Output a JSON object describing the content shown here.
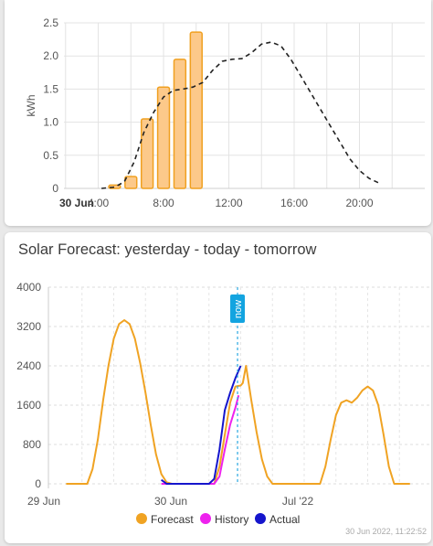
{
  "card1": {
    "chart_data": {
      "type": "bar",
      "ylabel": "kWh",
      "ylim": [
        0,
        2.5
      ],
      "y_ticks": [
        "0",
        "0.5",
        "1.0",
        "1.5",
        "2.0",
        "2.5"
      ],
      "x_tick_labels": [
        {
          "hour": 4,
          "label": "4:00"
        },
        {
          "hour": 8,
          "label": "8:00"
        },
        {
          "hour": 12,
          "label": "12:00"
        },
        {
          "hour": 16,
          "label": "16:00"
        },
        {
          "hour": 20,
          "label": "20:00"
        }
      ],
      "x_date_label": "30 Jun",
      "bars": [
        {
          "hour": 5,
          "value": 0.05
        },
        {
          "hour": 6,
          "value": 0.18
        },
        {
          "hour": 7,
          "value": 1.05
        },
        {
          "hour": 8,
          "value": 1.53
        },
        {
          "hour": 9,
          "value": 1.95
        },
        {
          "hour": 10,
          "value": 2.36
        }
      ],
      "forecast_line": [
        [
          4.2,
          0
        ],
        [
          5,
          0.02
        ],
        [
          5.6,
          0.1
        ],
        [
          6.2,
          0.4
        ],
        [
          6.8,
          0.85
        ],
        [
          7.4,
          1.15
        ],
        [
          8,
          1.38
        ],
        [
          8.6,
          1.48
        ],
        [
          9.2,
          1.5
        ],
        [
          9.8,
          1.53
        ],
        [
          10.4,
          1.6
        ],
        [
          11,
          1.78
        ],
        [
          11.6,
          1.92
        ],
        [
          12.2,
          1.95
        ],
        [
          12.8,
          1.96
        ],
        [
          13.4,
          2.05
        ],
        [
          14,
          2.18
        ],
        [
          14.6,
          2.21
        ],
        [
          15.2,
          2.15
        ],
        [
          15.8,
          1.95
        ],
        [
          16.4,
          1.7
        ],
        [
          17,
          1.45
        ],
        [
          17.6,
          1.2
        ],
        [
          18.2,
          0.95
        ],
        [
          18.8,
          0.7
        ],
        [
          19.4,
          0.45
        ],
        [
          20,
          0.27
        ],
        [
          20.6,
          0.15
        ],
        [
          21.2,
          0.08
        ]
      ],
      "colors": {
        "bar_fill": "#fcc98a",
        "bar_stroke": "#f0a020",
        "line": "#222222"
      }
    }
  },
  "card2": {
    "title": "Solar Forecast: yesterday - today - tomorrow",
    "now_label": "now",
    "timestamp": "30 Jun 2022, 11:22:52",
    "chart_data": {
      "type": "line",
      "ylim": [
        0,
        4000
      ],
      "y_ticks": [
        "0",
        "800",
        "1600",
        "2400",
        "3200",
        "4000"
      ],
      "x_tick_labels": [
        {
          "hour": 0,
          "label": "29 Jun"
        },
        {
          "hour": 24,
          "label": "30 Jun"
        },
        {
          "hour": 48,
          "label": "Jul '22"
        }
      ],
      "now_hour": 35.4,
      "series": [
        {
          "name": "Forecast",
          "color": "#f0a323",
          "points": [
            [
              3,
              0
            ],
            [
              7,
              0
            ],
            [
              8,
              300
            ],
            [
              9,
              900
            ],
            [
              10,
              1700
            ],
            [
              11,
              2400
            ],
            [
              12,
              2950
            ],
            [
              13,
              3250
            ],
            [
              14,
              3330
            ],
            [
              15,
              3250
            ],
            [
              16,
              2950
            ],
            [
              17,
              2450
            ],
            [
              18,
              1850
            ],
            [
              19,
              1200
            ],
            [
              20,
              600
            ],
            [
              21,
              200
            ],
            [
              22,
              30
            ],
            [
              23,
              0
            ],
            [
              31,
              0
            ],
            [
              32,
              350
            ],
            [
              33,
              1000
            ],
            [
              34,
              1650
            ],
            [
              35,
              1980
            ],
            [
              36,
              2000
            ],
            [
              36.4,
              2050
            ],
            [
              37,
              2400
            ],
            [
              37.5,
              2050
            ],
            [
              38,
              1700
            ],
            [
              39,
              1050
            ],
            [
              40,
              500
            ],
            [
              41,
              150
            ],
            [
              42,
              0
            ],
            [
              51,
              0
            ],
            [
              52,
              350
            ],
            [
              53,
              900
            ],
            [
              54,
              1400
            ],
            [
              55,
              1650
            ],
            [
              56,
              1700
            ],
            [
              57,
              1650
            ],
            [
              58,
              1750
            ],
            [
              59,
              1900
            ],
            [
              60,
              1980
            ],
            [
              61,
              1900
            ],
            [
              62,
              1600
            ],
            [
              63,
              1000
            ],
            [
              64,
              350
            ],
            [
              65,
              0
            ],
            [
              68,
              0
            ]
          ]
        },
        {
          "name": "History",
          "color": "#ee22ee",
          "points": [
            [
              21,
              0
            ],
            [
              28,
              0
            ],
            [
              31,
              0
            ],
            [
              32,
              150
            ],
            [
              33,
              700
            ],
            [
              34,
              1200
            ],
            [
              35,
              1550
            ],
            [
              35.6,
              1800
            ]
          ]
        },
        {
          "name": "Actual",
          "color": "#1515cc",
          "points": [
            [
              21,
              80
            ],
            [
              22,
              0
            ],
            [
              27.5,
              0
            ],
            [
              29,
              0
            ],
            [
              30,
              0
            ],
            [
              31,
              100
            ],
            [
              32,
              700
            ],
            [
              33,
              1500
            ],
            [
              34,
              1850
            ],
            [
              35,
              2150
            ],
            [
              36,
              2400
            ]
          ]
        }
      ]
    }
  }
}
